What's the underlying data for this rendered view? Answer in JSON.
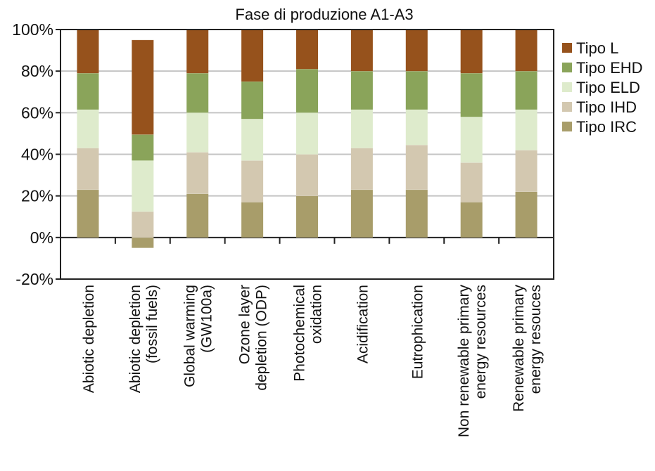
{
  "chart_data": {
    "type": "bar",
    "stacked": true,
    "title": "Fase di produzione A1-A3",
    "xlabel": "",
    "ylabel": "",
    "ylim": [
      -20,
      100
    ],
    "yticks": [
      -20,
      0,
      20,
      40,
      60,
      80,
      100
    ],
    "ytick_labels": [
      "-20%",
      "0%",
      "20%",
      "40%",
      "60%",
      "80%",
      "100%"
    ],
    "grid": true,
    "legend_position": "right",
    "categories": [
      [
        "Abiotic depletion"
      ],
      [
        "Abiotic depletion",
        "(fossil fuels)"
      ],
      [
        "Global warming",
        "(GW100a)"
      ],
      [
        "Ozone layer",
        "depletion (ODP)"
      ],
      [
        "Photochemical",
        "oxidation"
      ],
      [
        "Acidification"
      ],
      [
        "Eutrophication"
      ],
      [
        "Non renewable primary",
        "energy resources"
      ],
      [
        "Renewable primary",
        "energy resouces"
      ]
    ],
    "series": [
      {
        "name": "Tipo IRC",
        "color": "#a89d6a",
        "values": [
          23,
          -5,
          21,
          17,
          20,
          23,
          23,
          17,
          22
        ]
      },
      {
        "name": "Tipo IHD",
        "color": "#d3c8b0",
        "values": [
          20,
          12.5,
          20,
          20,
          20,
          20,
          21.5,
          19,
          20
        ]
      },
      {
        "name": "Tipo ELD",
        "color": "#deebcc",
        "values": [
          18.5,
          24.5,
          19,
          20,
          20,
          18.5,
          17,
          22,
          19.5
        ]
      },
      {
        "name": "Tipo EHD",
        "color": "#8aa45a",
        "values": [
          17.5,
          12.5,
          19,
          18,
          21,
          18.5,
          18.5,
          21,
          18.5
        ]
      },
      {
        "name": "Tipo L",
        "color": "#96521c",
        "values": [
          21,
          45.5,
          21,
          25,
          19,
          20,
          20,
          21,
          20
        ]
      }
    ],
    "legend_order": [
      "Tipo L",
      "Tipo EHD",
      "Tipo ELD",
      "Tipo IHD",
      "Tipo IRC"
    ]
  }
}
